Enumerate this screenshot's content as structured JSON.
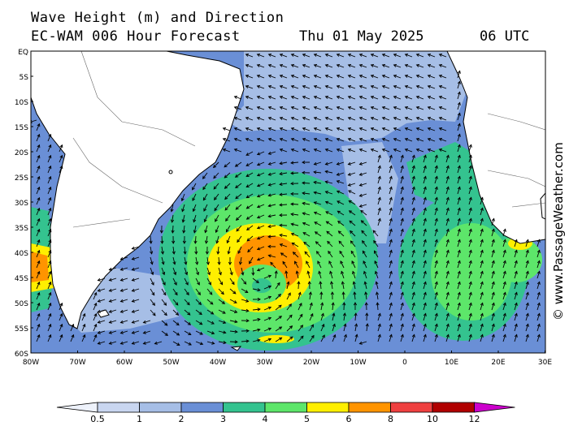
{
  "header": {
    "title_line1": "Wave Height (m) and Direction",
    "title_line2": "EC-WAM 006 Hour Forecast",
    "date": "Thu 01 May 2025",
    "time": "06 UTC"
  },
  "watermark": "© www.PassageWeather.com",
  "map": {
    "lat_labels": [
      "EQ",
      "5S",
      "10S",
      "15S",
      "20S",
      "25S",
      "30S",
      "35S",
      "40S",
      "45S",
      "50S",
      "55S",
      "60S"
    ],
    "lon_labels": [
      "80W",
      "70W",
      "60W",
      "50W",
      "40W",
      "30W",
      "20W",
      "10W",
      "0",
      "10E",
      "20E",
      "30E"
    ],
    "colors": {
      "land": "#ffffff",
      "ocean_base": "#6a8fd6",
      "wave_1_2": "#a6bee6",
      "wave_2_3": "#6a8fd6",
      "wave_3_4": "#34c38f",
      "wave_4_5": "#5de66a",
      "wave_5_6": "#ffef00",
      "wave_6_8": "#ff9400",
      "arrows": "#000000"
    }
  },
  "legend": {
    "labels": [
      "0.5",
      "1",
      "2",
      "3",
      "4",
      "5",
      "6",
      "8",
      "10",
      "12"
    ],
    "colors": [
      "#eef2fb",
      "#c9d6f0",
      "#a6bee6",
      "#6a8fd6",
      "#34c38f",
      "#5de66a",
      "#ffef00",
      "#ff9400",
      "#ef4040",
      "#b00000",
      "#cc00cc"
    ]
  }
}
